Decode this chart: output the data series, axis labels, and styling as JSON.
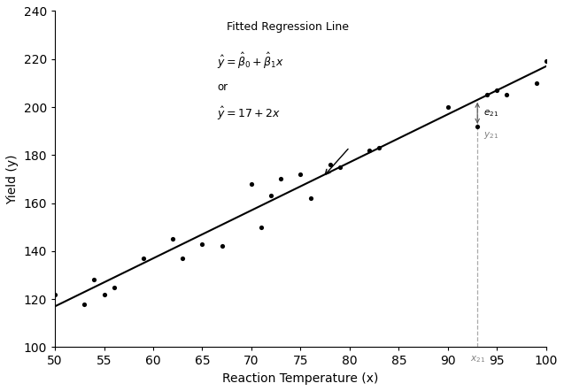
{
  "title": "Fitted Regression Line",
  "xlabel": "Reaction Temperature (x)",
  "ylabel": "Yield (y)",
  "xlim": [
    50,
    100
  ],
  "ylim": [
    100,
    240
  ],
  "xticks": [
    50,
    55,
    60,
    65,
    70,
    75,
    80,
    85,
    90,
    95,
    100
  ],
  "yticks": [
    100,
    120,
    140,
    160,
    180,
    200,
    220,
    240
  ],
  "regression_b0": 17,
  "regression_b1": 2,
  "scatter_x": [
    50,
    53,
    54,
    55,
    56,
    59,
    62,
    63,
    65,
    67,
    70,
    71,
    72,
    73,
    75,
    76,
    78,
    79,
    82,
    83,
    90,
    93,
    94,
    95,
    96,
    99,
    100
  ],
  "scatter_y": [
    122,
    118,
    128,
    122,
    125,
    137,
    145,
    137,
    143,
    142,
    168,
    150,
    163,
    170,
    172,
    162,
    176,
    175,
    182,
    183,
    200,
    192,
    205,
    207,
    205,
    210,
    219
  ],
  "obs21_x": 93,
  "obs21_y": 192,
  "fitted21_y": 203,
  "dot_color": "#000000",
  "line_color": "#000000",
  "dashed_color": "#aaaaaa",
  "residual_color": "#555555",
  "background_color": "#ffffff",
  "figsize": [
    6.37,
    4.42
  ],
  "dpi": 100
}
